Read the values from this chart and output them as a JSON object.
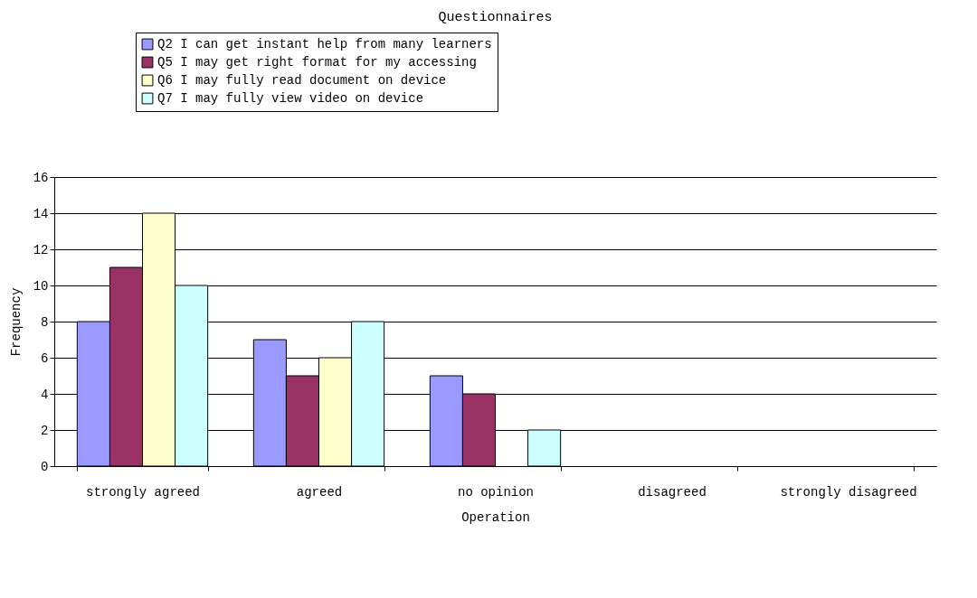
{
  "chart_data": {
    "type": "bar",
    "title": "Questionnaires",
    "xlabel": "Operation",
    "ylabel": "Frequency",
    "categories": [
      "strongly agreed",
      "agreed",
      "no opinion",
      "disagreed",
      "strongly disagreed"
    ],
    "series": [
      {
        "name": "Q2 I can get instant help from many learners",
        "color": "#9999ff",
        "values": [
          8,
          7,
          5,
          null,
          null
        ]
      },
      {
        "name": "Q5 I may get right format for my accessing",
        "color": "#993366",
        "values": [
          11,
          5,
          4,
          null,
          null
        ]
      },
      {
        "name": "Q6 I may fully read document on device",
        "color": "#ffffcc",
        "values": [
          14,
          6,
          null,
          null,
          null
        ]
      },
      {
        "name": "Q7 I may fully view video on device",
        "color": "#ccffff",
        "values": [
          10,
          8,
          2,
          null,
          null
        ]
      }
    ],
    "ylim": [
      0,
      16
    ],
    "yticks": [
      0,
      2,
      4,
      6,
      8,
      10,
      12,
      14,
      16
    ],
    "grid": "y",
    "legend": "top"
  }
}
